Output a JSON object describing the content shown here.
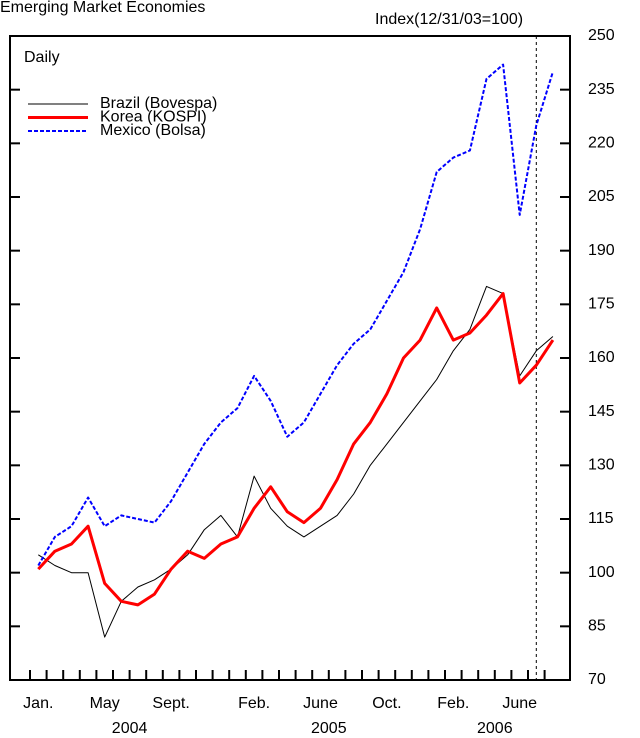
{
  "chart_data": {
    "type": "line",
    "title": "Emerging Market Economies",
    "y_axis_label": "Index(12/31/03=100)",
    "subtitle": "Daily",
    "x": [
      "2004-01",
      "2004-02",
      "2004-03",
      "2004-04",
      "2004-05",
      "2004-06",
      "2004-07",
      "2004-08",
      "2004-09",
      "2004-10",
      "2004-11",
      "2004-12",
      "2005-01",
      "2005-02",
      "2005-03",
      "2005-04",
      "2005-05",
      "2005-06",
      "2005-07",
      "2005-08",
      "2005-09",
      "2005-10",
      "2005-11",
      "2005-12",
      "2006-01",
      "2006-02",
      "2006-03",
      "2006-04",
      "2006-05",
      "2006-06",
      "2006-07",
      "2006-08"
    ],
    "xticks": [
      {
        "value": "2004-01",
        "label": "Jan."
      },
      {
        "value": "2004-05",
        "label": "May"
      },
      {
        "value": "2004-09",
        "label": "Sept."
      },
      {
        "value": "2005-02",
        "label": "Feb."
      },
      {
        "value": "2005-06",
        "label": "June"
      },
      {
        "value": "2005-10",
        "label": "Oct."
      },
      {
        "value": "2006-02",
        "label": "Feb."
      },
      {
        "value": "2006-06",
        "label": "June"
      }
    ],
    "years": [
      "2004",
      "2005",
      "2006"
    ],
    "vline": "2006-07",
    "series": [
      {
        "name": "Brazil (Bovespa)",
        "color": "#000000",
        "style": "solid",
        "line_width": 1,
        "values": [
          105,
          102,
          100,
          100,
          82,
          92,
          96,
          98,
          101,
          105,
          112,
          116,
          110,
          127,
          118,
          113,
          110,
          113,
          116,
          122,
          130,
          136,
          142,
          148,
          154,
          162,
          168,
          180,
          178,
          155,
          162,
          166
        ]
      },
      {
        "name": "Korea (KOSPI)",
        "color": "#ff0000",
        "style": "solid",
        "line_width": 3,
        "values": [
          101,
          106,
          108,
          113,
          97,
          92,
          91,
          94,
          101,
          106,
          104,
          108,
          110,
          118,
          124,
          117,
          114,
          118,
          126,
          136,
          142,
          150,
          160,
          165,
          174,
          165,
          167,
          172,
          178,
          153,
          158,
          165
        ]
      },
      {
        "name": "Mexico (Bolsa)",
        "color": "#0000ff",
        "style": "dashed",
        "line_width": 2,
        "values": [
          102,
          110,
          113,
          121,
          113,
          116,
          115,
          114,
          120,
          128,
          136,
          142,
          146,
          155,
          148,
          138,
          142,
          150,
          158,
          164,
          168,
          176,
          184,
          196,
          212,
          216,
          218,
          238,
          242,
          200,
          225,
          240
        ]
      }
    ],
    "ylim": [
      70,
      250
    ],
    "yticks": [
      70,
      85,
      100,
      115,
      130,
      145,
      160,
      175,
      190,
      205,
      220,
      235,
      250
    ]
  }
}
